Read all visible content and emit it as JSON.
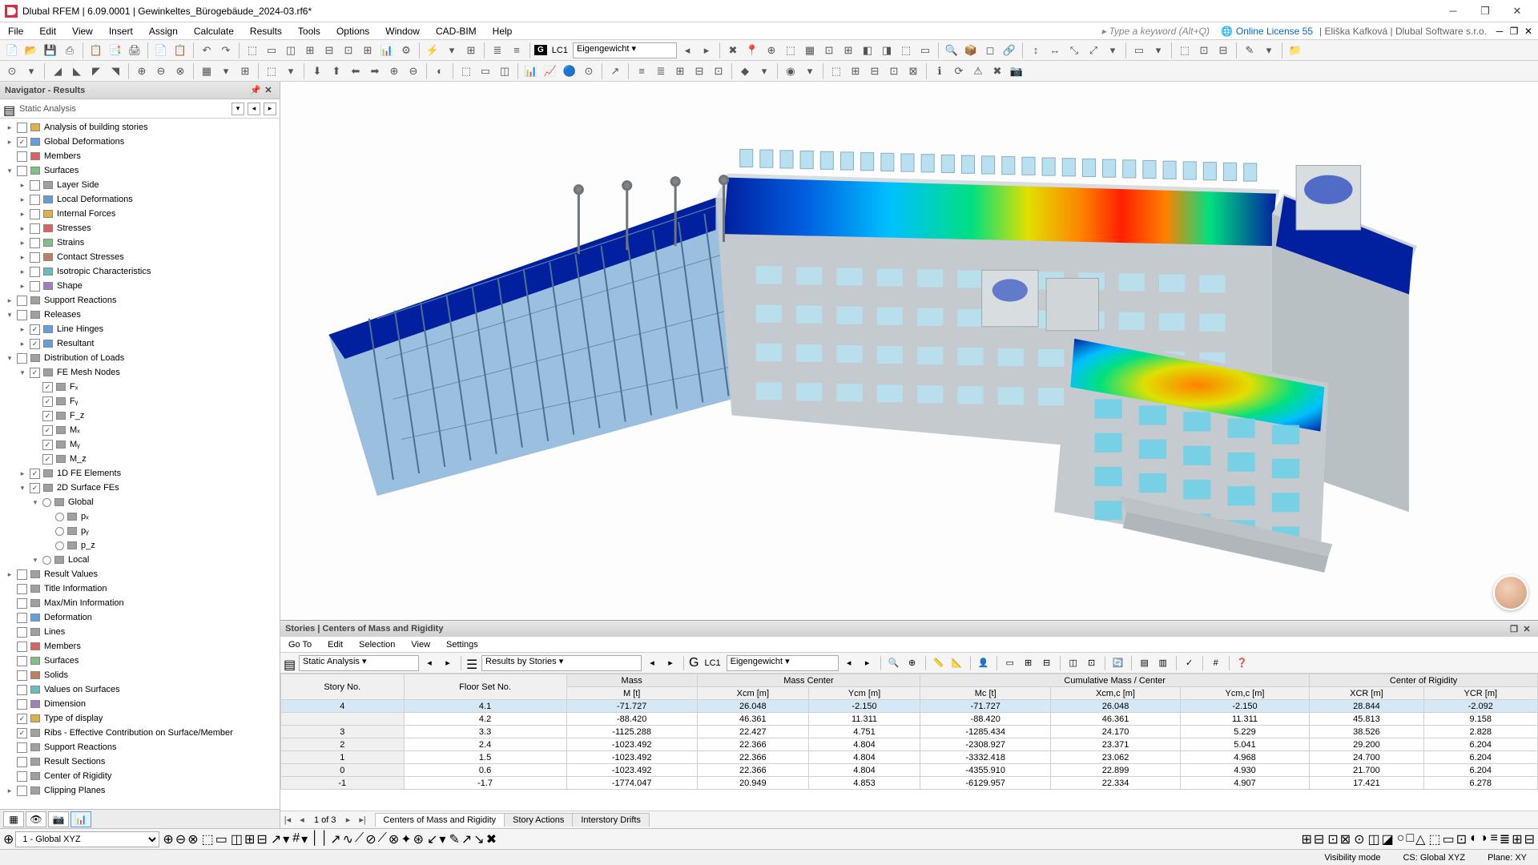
{
  "app": {
    "title": "Dlubal RFEM | 6.09.0001 | Gewinkeltes_Bürogebäude_2024-03.rf6*",
    "search_hint": "Type a keyword (Alt+Q)",
    "license": "Online License 55",
    "user": "Eliška Kafková | Dlubal Software s.r.o."
  },
  "menus": [
    "File",
    "Edit",
    "View",
    "Insert",
    "Assign",
    "Calculate",
    "Results",
    "Tools",
    "Options",
    "Window",
    "CAD-BIM",
    "Help"
  ],
  "loadcase": {
    "code": "LC1",
    "name": "Eigengewicht"
  },
  "navigator": {
    "title": "Navigator - Results",
    "filter": "Static Analysis",
    "items": [
      {
        "d": 0,
        "exp": ">",
        "chk": 0,
        "badge": "#e0b040",
        "label": "Analysis of building stories"
      },
      {
        "d": 0,
        "exp": ">",
        "chk": 1,
        "badge": "#60a0e0",
        "label": "Global Deformations"
      },
      {
        "d": 0,
        "exp": "",
        "chk": 0,
        "badge": "#e06060",
        "label": "Members"
      },
      {
        "d": 0,
        "exp": "v",
        "chk": 0,
        "badge": "#80c080",
        "label": "Surfaces"
      },
      {
        "d": 1,
        "exp": ">",
        "chk": 0,
        "badge": "#a0a0a0",
        "label": "Layer Side"
      },
      {
        "d": 1,
        "exp": ">",
        "chk": 0,
        "badge": "#60a0e0",
        "label": "Local Deformations"
      },
      {
        "d": 1,
        "exp": ">",
        "chk": 0,
        "badge": "#e0b040",
        "label": "Internal Forces"
      },
      {
        "d": 1,
        "exp": ">",
        "chk": 0,
        "badge": "#e06060",
        "label": "Stresses"
      },
      {
        "d": 1,
        "exp": ">",
        "chk": 0,
        "badge": "#80c080",
        "label": "Strains"
      },
      {
        "d": 1,
        "exp": ">",
        "chk": 0,
        "badge": "#c08060",
        "label": "Contact Stresses"
      },
      {
        "d": 1,
        "exp": ">",
        "chk": 0,
        "badge": "#60c0c0",
        "label": "Isotropic Characteristics"
      },
      {
        "d": 1,
        "exp": ">",
        "chk": 0,
        "badge": "#a080c0",
        "label": "Shape"
      },
      {
        "d": 0,
        "exp": ">",
        "chk": 0,
        "badge": "#a0a0a0",
        "label": "Support Reactions"
      },
      {
        "d": 0,
        "exp": "v",
        "chk": 0,
        "badge": "#a0a0a0",
        "label": "Releases"
      },
      {
        "d": 1,
        "exp": ">",
        "chk": 1,
        "badge": "#60a0e0",
        "label": "Line Hinges"
      },
      {
        "d": 1,
        "exp": ">",
        "chk": 1,
        "badge": "#60a0e0",
        "label": "Resultant"
      },
      {
        "d": 0,
        "exp": "v",
        "chk": 0,
        "badge": "#a0a0a0",
        "label": "Distribution of Loads"
      },
      {
        "d": 1,
        "exp": "v",
        "chk": 1,
        "badge": "#a0a0a0",
        "label": "FE Mesh Nodes"
      },
      {
        "d": 2,
        "exp": "",
        "chk": 1,
        "badge": "#a0a0a0",
        "label": "Fₓ"
      },
      {
        "d": 2,
        "exp": "",
        "chk": 1,
        "badge": "#a0a0a0",
        "label": "Fᵧ"
      },
      {
        "d": 2,
        "exp": "",
        "chk": 1,
        "badge": "#a0a0a0",
        "label": "F_z"
      },
      {
        "d": 2,
        "exp": "",
        "chk": 1,
        "badge": "#a0a0a0",
        "label": "Mₓ"
      },
      {
        "d": 2,
        "exp": "",
        "chk": 1,
        "badge": "#a0a0a0",
        "label": "Mᵧ"
      },
      {
        "d": 2,
        "exp": "",
        "chk": 1,
        "badge": "#a0a0a0",
        "label": "M_z"
      },
      {
        "d": 1,
        "exp": ">",
        "chk": 1,
        "badge": "#a0a0a0",
        "label": "1D FE Elements"
      },
      {
        "d": 1,
        "exp": "v",
        "chk": 1,
        "badge": "#a0a0a0",
        "label": "2D Surface FEs"
      },
      {
        "d": 2,
        "exp": "v",
        "chk": 0,
        "badge": "#a0a0a0",
        "label": "Global",
        "radio": true
      },
      {
        "d": 3,
        "exp": "",
        "chk": 0,
        "badge": "#a0a0a0",
        "label": "pₓ",
        "radio": true
      },
      {
        "d": 3,
        "exp": "",
        "chk": 0,
        "badge": "#a0a0a0",
        "label": "pᵧ",
        "radio": true
      },
      {
        "d": 3,
        "exp": "",
        "chk": 0,
        "badge": "#a0a0a0",
        "label": "p_z",
        "radio": true
      },
      {
        "d": 2,
        "exp": "v",
        "chk": 0,
        "badge": "#a0a0a0",
        "label": "Local",
        "radio": true
      },
      {
        "d": 0,
        "exp": ">",
        "chk": 0,
        "badge": "#a0a0a0",
        "label": "Result Values"
      },
      {
        "d": 0,
        "exp": "",
        "chk": 0,
        "badge": "#a0a0a0",
        "label": "Title Information"
      },
      {
        "d": 0,
        "exp": "",
        "chk": 0,
        "badge": "#a0a0a0",
        "label": "Max/Min Information"
      },
      {
        "d": 0,
        "exp": "",
        "chk": 0,
        "badge": "#60a0e0",
        "label": "Deformation"
      },
      {
        "d": 0,
        "exp": "",
        "chk": 0,
        "badge": "#a0a0a0",
        "label": "Lines"
      },
      {
        "d": 0,
        "exp": "",
        "chk": 0,
        "badge": "#e06060",
        "label": "Members"
      },
      {
        "d": 0,
        "exp": "",
        "chk": 0,
        "badge": "#80c080",
        "label": "Surfaces"
      },
      {
        "d": 0,
        "exp": "",
        "chk": 0,
        "badge": "#c08060",
        "label": "Solids"
      },
      {
        "d": 0,
        "exp": "",
        "chk": 0,
        "badge": "#60c0c0",
        "label": "Values on Surfaces"
      },
      {
        "d": 0,
        "exp": "",
        "chk": 0,
        "badge": "#a080c0",
        "label": "Dimension"
      },
      {
        "d": 0,
        "exp": "",
        "chk": 1,
        "badge": "#e0b040",
        "label": "Type of display"
      },
      {
        "d": 0,
        "exp": "",
        "chk": 1,
        "badge": "#a0a0a0",
        "label": "Ribs - Effective Contribution on Surface/Member"
      },
      {
        "d": 0,
        "exp": "",
        "chk": 0,
        "badge": "#a0a0a0",
        "label": "Support Reactions"
      },
      {
        "d": 0,
        "exp": "",
        "chk": 0,
        "badge": "#a0a0a0",
        "label": "Result Sections"
      },
      {
        "d": 0,
        "exp": "",
        "chk": 0,
        "badge": "#a0a0a0",
        "label": "Center of Rigidity"
      },
      {
        "d": 0,
        "exp": ">",
        "chk": 0,
        "badge": "#a0a0a0",
        "label": "Clipping Planes"
      }
    ]
  },
  "panel": {
    "title": "Stories | Centers of Mass and Rigidity",
    "menus": [
      "Go To",
      "Edit",
      "Selection",
      "View",
      "Settings"
    ],
    "filter1": "Static Analysis",
    "filter2": "Results by Stories",
    "lc_code": "LC1",
    "lc_name": "Eigengewicht",
    "groups": [
      "Mass",
      "Mass Center",
      "Cumulative Mass / Center",
      "Center of Rigidity"
    ],
    "cols": [
      "Story No.",
      "Floor Set No.",
      "M [t]",
      "Xcm [m]",
      "Ycm [m]",
      "Mc [t]",
      "Xcm,c [m]",
      "Ycm,c [m]",
      "XCR [m]",
      "YCR [m]"
    ],
    "rows": [
      [
        "4",
        "4.1",
        "-71.727",
        "26.048",
        "-2.150",
        "-71.727",
        "26.048",
        "-2.150",
        "28.844",
        "-2.092"
      ],
      [
        "",
        "4.2",
        "-88.420",
        "46.361",
        "11.311",
        "-88.420",
        "46.361",
        "11.311",
        "45.813",
        "9.158"
      ],
      [
        "3",
        "3.3",
        "-1125.288",
        "22.427",
        "4.751",
        "-1285.434",
        "24.170",
        "5.229",
        "38.526",
        "2.828"
      ],
      [
        "2",
        "2.4",
        "-1023.492",
        "22.366",
        "4.804",
        "-2308.927",
        "23.371",
        "5.041",
        "29.200",
        "6.204"
      ],
      [
        "1",
        "1.5",
        "-1023.492",
        "22.366",
        "4.804",
        "-3332.418",
        "23.062",
        "4.968",
        "24.700",
        "6.204"
      ],
      [
        "0",
        "0.6",
        "-1023.492",
        "22.366",
        "4.804",
        "-4355.910",
        "22.899",
        "4.930",
        "21.700",
        "6.204"
      ],
      [
        "-1",
        "-1.7",
        "-1774.047",
        "20.949",
        "4.853",
        "-6129.957",
        "22.334",
        "4.907",
        "17.421",
        "6.278"
      ]
    ],
    "page": "1 of 3",
    "tabs": [
      "Centers of Mass and Rigidity",
      "Story Actions",
      "Interstory Drifts"
    ],
    "active_tab": 0
  },
  "status": {
    "vis": "Visibility mode",
    "cs": "CS: Global XYZ",
    "plane": "Plane: XY"
  },
  "bottom_combo": "1 - Global XYZ",
  "viz": {
    "bg": "#fdfdfd",
    "wall": "#b8c0c4",
    "wall_light": "#d8dde0",
    "glass": "#a8d8e8",
    "heat": [
      "#0020a0",
      "#0060e0",
      "#00c0ff",
      "#00e080",
      "#e0e000",
      "#ff8000",
      "#ff2000",
      "#b00000"
    ]
  }
}
